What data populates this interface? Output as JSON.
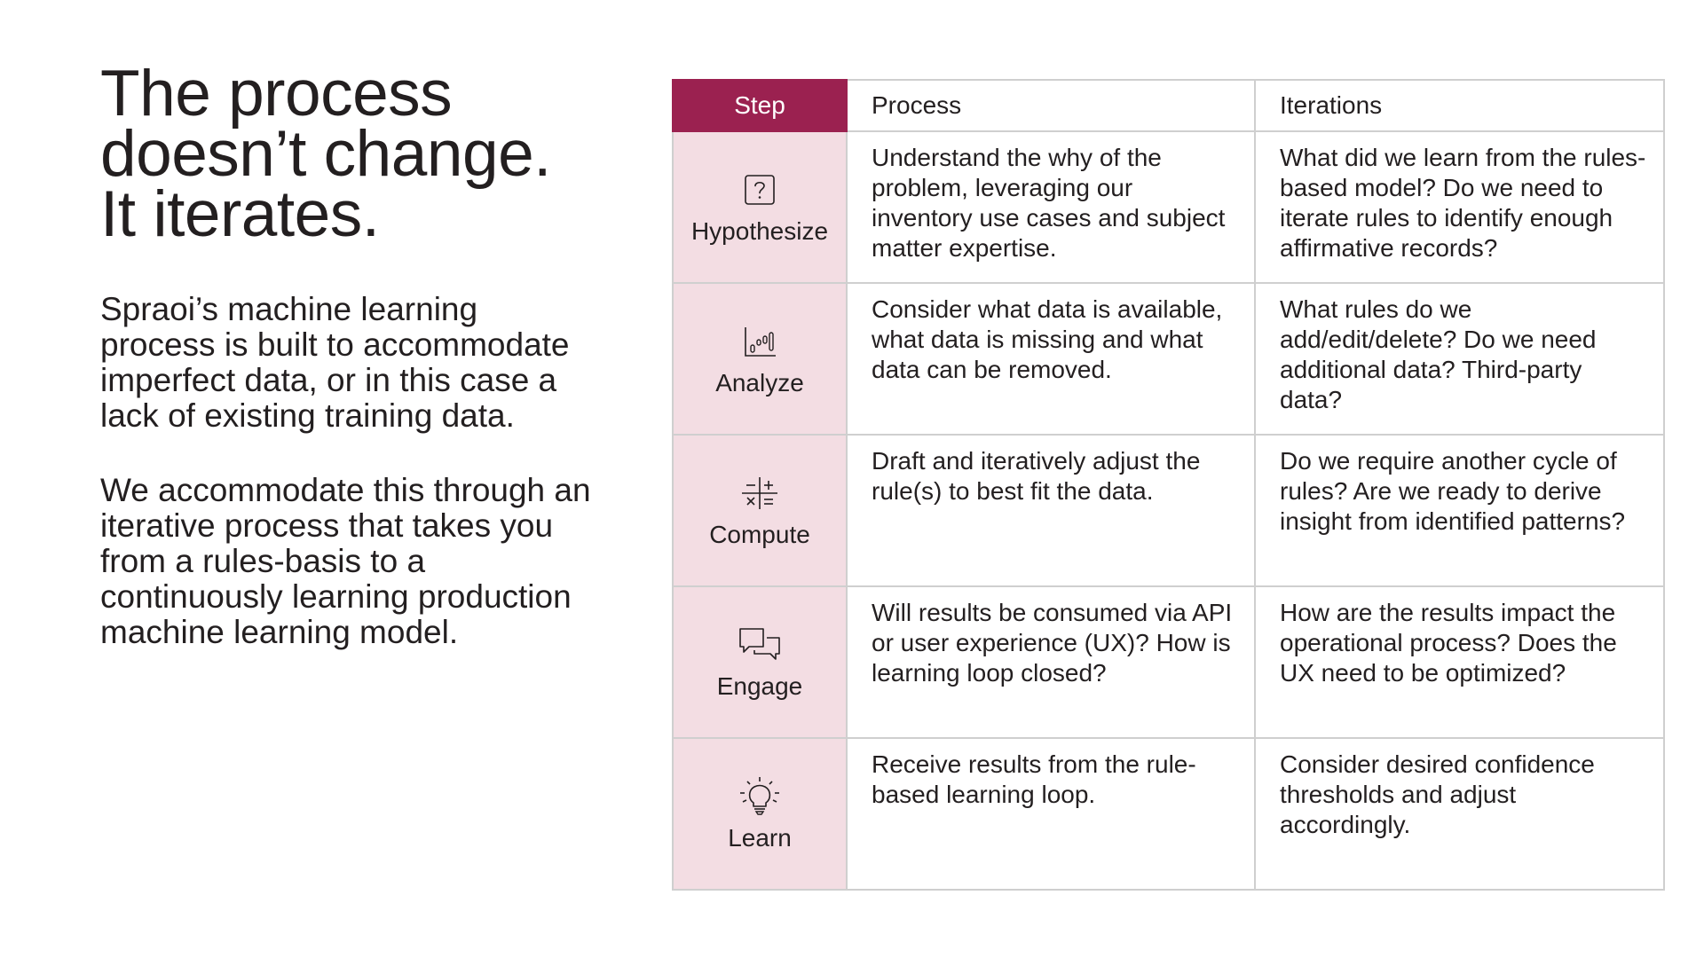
{
  "title_lines": [
    "The process",
    "doesn’t change.",
    "It iterates."
  ],
  "paragraphs": [
    "Spraoi’s machine learning process is built to accommodate imperfect data, or in this case a lack of existing training data.",
    "We accommodate this through an iterative process that takes you from a rules-basis to a continuously learning production machine learning model."
  ],
  "table": {
    "headers": {
      "step": "Step",
      "process": "Process",
      "iterations": "Iterations"
    },
    "rows": [
      {
        "step": "Hypothesize",
        "icon": "question-icon",
        "process": "Understand the why of the problem, leveraging our inventory use cases and subject matter expertise.",
        "iterations": "What did we learn from the rules-based model? Do we need to iterate rules to identify enough affirmative records?"
      },
      {
        "step": "Analyze",
        "icon": "chart-icon",
        "process": "Consider what data is available, what data is missing and what data can be removed.",
        "iterations": "What rules do we add/edit/delete? Do we need additional data? Third-party data?"
      },
      {
        "step": "Compute",
        "icon": "calculator-icon",
        "process": "Draft and iteratively adjust the rule(s) to best fit the data.",
        "iterations": "Do we require another cycle of rules? Are we ready to derive insight from identified patterns?"
      },
      {
        "step": "Engage",
        "icon": "chat-bubbles-icon",
        "process": "Will results be consumed via API or user experience (UX)? How is learning loop closed?",
        "iterations": "How are the results impact the operational process? Does the UX need to be optimized?"
      },
      {
        "step": "Learn",
        "icon": "lightbulb-icon",
        "process": "Receive results from the rule-based learning loop.",
        "iterations": "Consider desired confidence thresholds and adjust accordingly."
      }
    ]
  },
  "colors": {
    "accent": "#9b2150",
    "step_bg": "#f3dde3",
    "border": "#cfcfcf",
    "text": "#231f20"
  }
}
